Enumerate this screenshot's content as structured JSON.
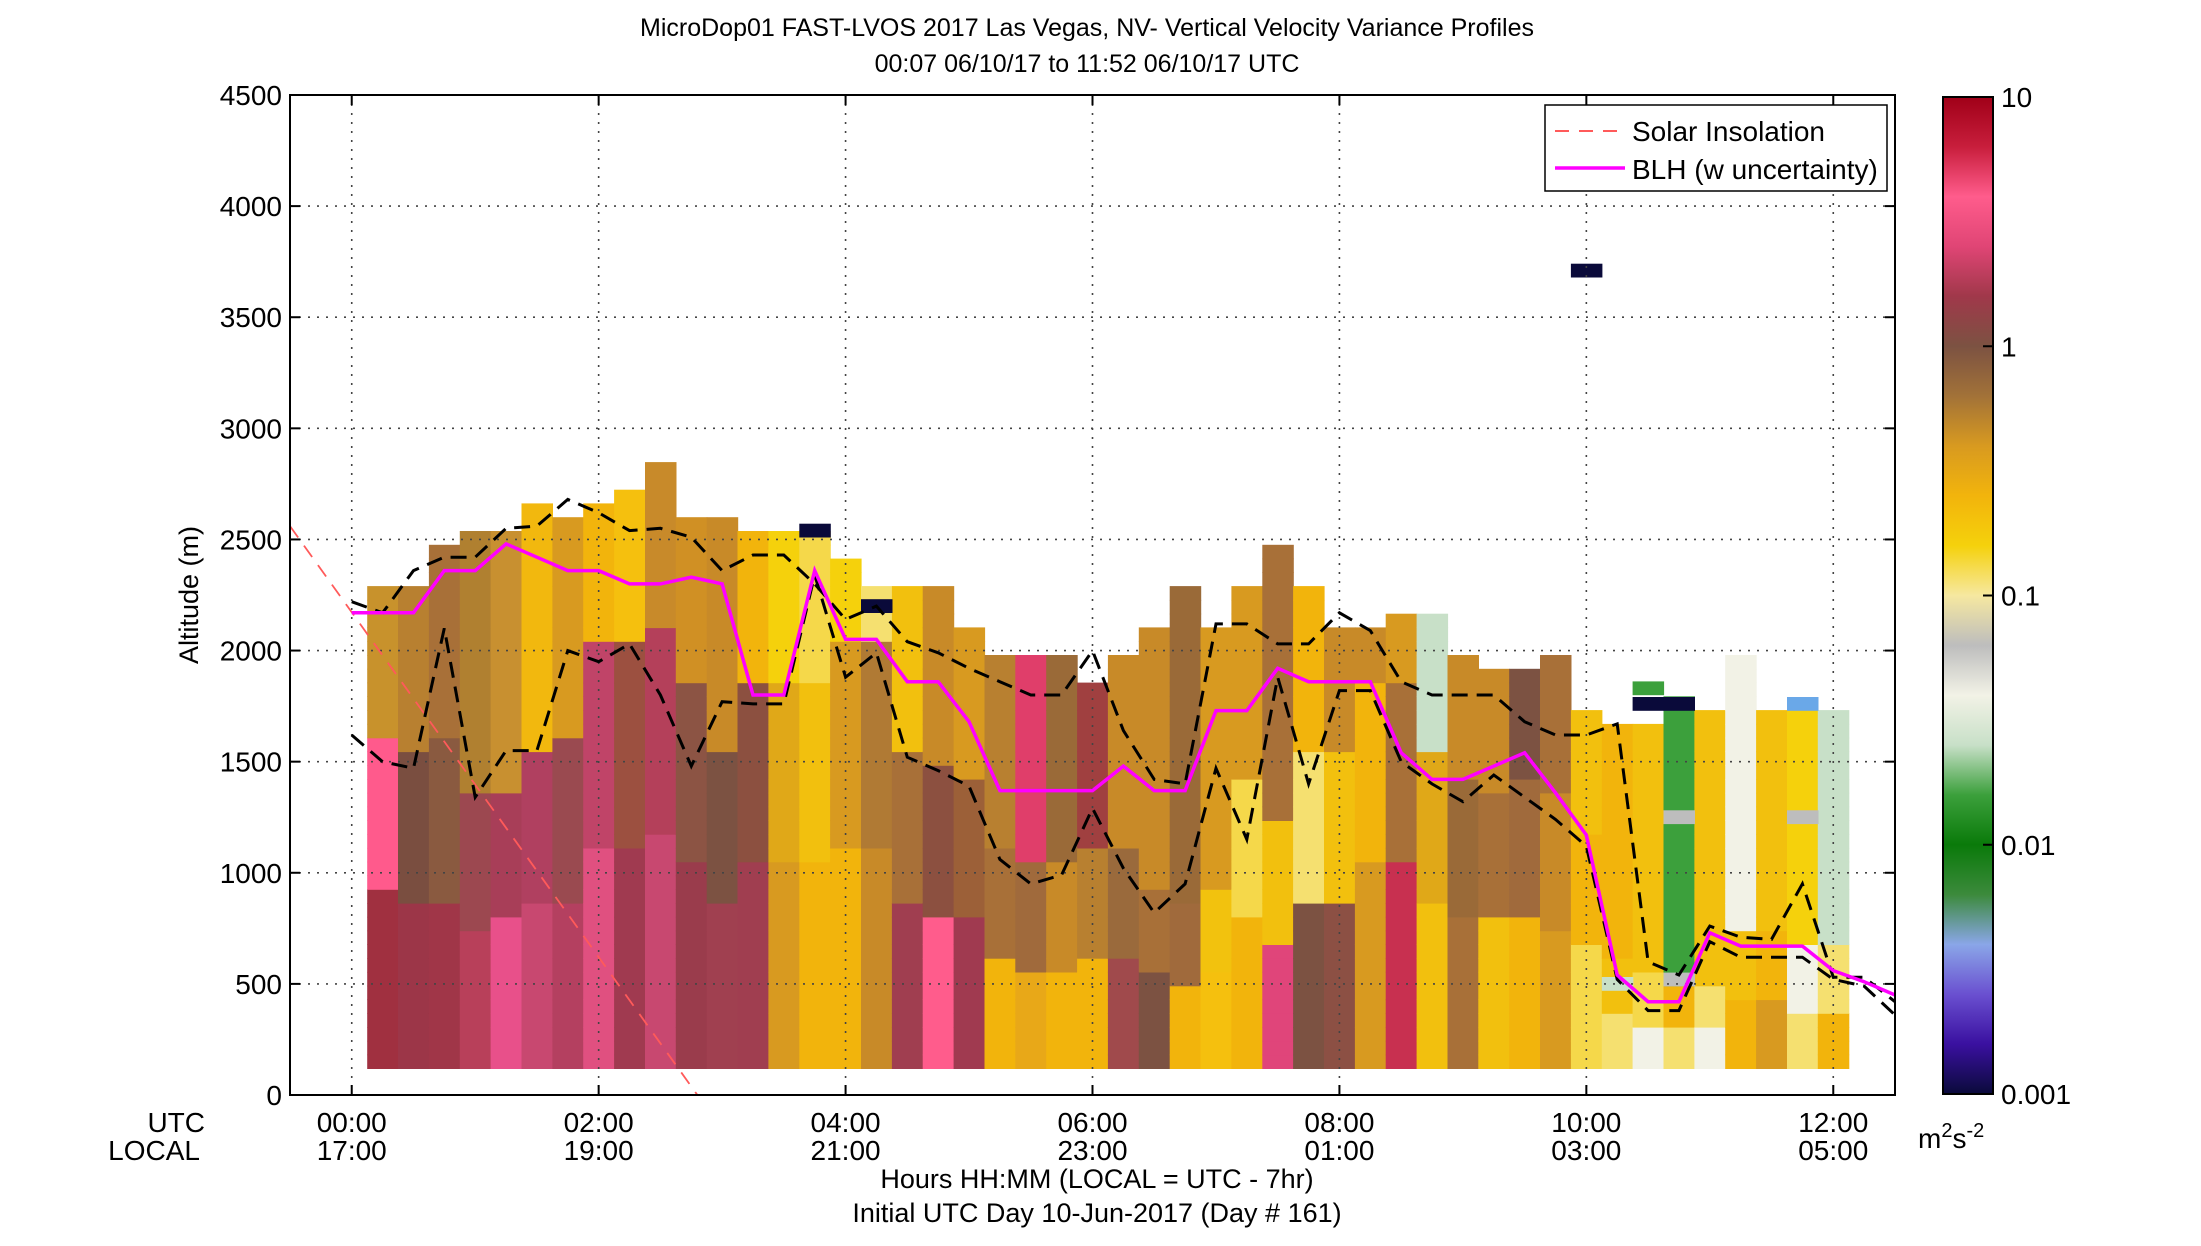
{
  "chart_data": {
    "type": "heatmap",
    "title": "MicroDop01 FAST-LVOS 2017 Las Vegas, NV- Vertical Velocity Variance Profiles",
    "subtitle": "00:07 06/10/17 to 11:52 06/10/17  UTC",
    "ylabel": "Altitude (m)",
    "xlabel": "Hours HH:MM  (LOCAL = UTC - 7hr)",
    "xlabel2": "Initial UTC Day 10-Jun-2017 (Day # 161)",
    "utc_row_label": "UTC",
    "local_row_label": "LOCAL",
    "xlim_hours_utc": [
      -0.5,
      12.5
    ],
    "ylim": [
      0,
      4500
    ],
    "y_ticks": [
      0,
      500,
      1000,
      1500,
      2000,
      2500,
      3000,
      3500,
      4000,
      4500
    ],
    "x_ticks": [
      {
        "hour": 0,
        "utc": "00:00",
        "local": "17:00"
      },
      {
        "hour": 2,
        "utc": "02:00",
        "local": "19:00"
      },
      {
        "hour": 4,
        "utc": "04:00",
        "local": "21:00"
      },
      {
        "hour": 6,
        "utc": "06:00",
        "local": "23:00"
      },
      {
        "hour": 8,
        "utc": "08:00",
        "local": "01:00"
      },
      {
        "hour": 10,
        "utc": "10:00",
        "local": "03:00"
      },
      {
        "hour": 12,
        "utc": "12:00",
        "local": "05:00"
      }
    ],
    "grid": true,
    "legend_position": "top-right",
    "legend": [
      {
        "label": "Solar Insolation",
        "color": "#ff5a5a",
        "style": "dashed"
      },
      {
        "label": "BLH (w uncertainty)",
        "color": "#ff00ff",
        "style": "solid"
      }
    ],
    "colorbar": {
      "scale": "log",
      "range": [
        0.001,
        10
      ],
      "tick_labels": [
        "0.001",
        "0.01",
        "0.1",
        "1",
        "10"
      ],
      "tick_values": [
        0.001,
        0.01,
        0.1,
        1,
        10
      ],
      "units": "m²s⁻²",
      "units_base": "m",
      "units_exp1": "2",
      "units_mid": "s",
      "units_exp2": "-2",
      "colormap": [
        "#0a0a3a",
        "#3a10a0",
        "#6a50d0",
        "#8aa6e8",
        "#3c8a3c",
        "#0a7a0a",
        "#3ca03c",
        "#c8e0c8",
        "#f2f2e6",
        "#bdbdbd",
        "#f6e8a0",
        "#f5d10c",
        "#f2b40c",
        "#d89a20",
        "#a27238",
        "#7c5242",
        "#a0384a",
        "#e04575",
        "#ff5c8c",
        "#c81e3c",
        "#a00018"
      ]
    },
    "blh_series": {
      "name": "BLH (w uncertainty)",
      "hours": [
        0.0,
        0.25,
        0.5,
        0.75,
        1.0,
        1.25,
        1.5,
        1.75,
        2.0,
        2.25,
        2.5,
        2.75,
        3.0,
        3.25,
        3.5,
        3.75,
        4.0,
        4.25,
        4.5,
        4.75,
        5.0,
        5.25,
        5.5,
        5.75,
        6.0,
        6.25,
        6.5,
        6.75,
        7.0,
        7.25,
        7.5,
        7.75,
        8.0,
        8.25,
        8.5,
        8.75,
        9.0,
        9.25,
        9.5,
        9.75,
        10.0,
        10.25,
        10.5,
        10.75,
        11.0,
        11.25,
        11.5,
        11.75,
        12.0,
        12.25,
        12.5
      ],
      "values": [
        2170,
        2170,
        2170,
        2360,
        2360,
        2480,
        2420,
        2360,
        2360,
        2300,
        2300,
        2330,
        2300,
        1800,
        1800,
        2360,
        2050,
        2050,
        1860,
        1860,
        1680,
        1370,
        1370,
        1370,
        1370,
        1480,
        1370,
        1370,
        1730,
        1730,
        1920,
        1860,
        1860,
        1860,
        1540,
        1420,
        1420,
        1480,
        1540,
        1360,
        1170,
        540,
        420,
        420,
        730,
        670,
        670,
        670,
        560,
        510,
        450
      ]
    },
    "blh_upper": {
      "hours": [
        0.0,
        0.25,
        0.5,
        0.75,
        1.0,
        1.25,
        1.5,
        1.75,
        2.0,
        2.25,
        2.5,
        2.75,
        3.0,
        3.25,
        3.5,
        3.75,
        4.0,
        4.25,
        4.5,
        4.75,
        5.0,
        5.25,
        5.5,
        5.75,
        6.0,
        6.25,
        6.5,
        6.75,
        7.0,
        7.25,
        7.5,
        7.75,
        8.0,
        8.25,
        8.5,
        8.75,
        9.0,
        9.25,
        9.5,
        9.75,
        10.0,
        10.25,
        10.5,
        10.75,
        11.0,
        11.25,
        11.5,
        11.75,
        12.0,
        12.25,
        12.5
      ],
      "values": [
        2220,
        2170,
        2360,
        2420,
        2420,
        2550,
        2560,
        2680,
        2620,
        2540,
        2550,
        2510,
        2360,
        2430,
        2430,
        2300,
        2140,
        2200,
        2040,
        1990,
        1920,
        1860,
        1800,
        1800,
        2000,
        1640,
        1420,
        1400,
        2120,
        2120,
        2030,
        2030,
        2170,
        2090,
        1860,
        1800,
        1800,
        1800,
        1680,
        1620,
        1620,
        1670,
        600,
        540,
        760,
        710,
        700,
        950,
        530,
        530,
        420
      ]
    },
    "blh_lower": {
      "hours": [
        0.0,
        0.25,
        0.5,
        0.75,
        1.0,
        1.25,
        1.5,
        1.75,
        2.0,
        2.25,
        2.5,
        2.75,
        3.0,
        3.25,
        3.5,
        3.75,
        4.0,
        4.25,
        4.5,
        4.75,
        5.0,
        5.25,
        5.5,
        5.75,
        6.0,
        6.25,
        6.5,
        6.75,
        7.0,
        7.25,
        7.5,
        7.75,
        8.0,
        8.25,
        8.5,
        8.75,
        9.0,
        9.25,
        9.5,
        9.75,
        10.0,
        10.25,
        10.5,
        10.75,
        11.0,
        11.25,
        11.5,
        11.75,
        12.0,
        12.25,
        12.5
      ],
      "values": [
        1620,
        1500,
        1470,
        2100,
        1340,
        1550,
        1550,
        2000,
        1950,
        2030,
        1800,
        1480,
        1770,
        1760,
        1760,
        2340,
        1880,
        1990,
        1520,
        1460,
        1390,
        1060,
        950,
        990,
        1290,
        1020,
        820,
        950,
        1470,
        1150,
        1880,
        1400,
        1820,
        1820,
        1500,
        1400,
        1320,
        1440,
        1340,
        1240,
        1120,
        520,
        380,
        380,
        690,
        620,
        620,
        620,
        520,
        490,
        360
      ]
    },
    "solar_insolation_line": {
      "name": "Solar Insolation",
      "hours": [
        -0.5,
        2.8
      ],
      "values": [
        2560,
        0
      ]
    },
    "columns": [
      {
        "h": 0.25,
        "top": 2290,
        "r": 1600,
        "lo": "#a03040",
        "mid": "#ff5a8c",
        "hi": "#c8922c"
      },
      {
        "h": 0.5,
        "top": 2230,
        "r": 1500,
        "lo": "#9c3648",
        "mid": "#7a4e40",
        "hi": "#b88030"
      },
      {
        "h": 0.75,
        "top": 2420,
        "r": 1550,
        "lo": "#a03648",
        "mid": "#8a5a40",
        "hi": "#a87038"
      },
      {
        "h": 1.0,
        "top": 2480,
        "r": 1300,
        "lo": "#b8405a",
        "mid": "#9c4850",
        "hi": "#b08030"
      },
      {
        "h": 1.25,
        "top": 2480,
        "r": 1350,
        "lo": "#e8508a",
        "mid": "#a83e58",
        "hi": "#c89030"
      },
      {
        "h": 1.5,
        "top": 2660,
        "r": 1500,
        "lo": "#c84870",
        "mid": "#b04060",
        "hi": "#f2b80e"
      },
      {
        "h": 1.75,
        "top": 2600,
        "r": 1550,
        "lo": "#b44060",
        "mid": "#9a4a50",
        "hi": "#d89a20"
      },
      {
        "h": 2.0,
        "top": 2660,
        "r": 2000,
        "lo": "#e05080",
        "mid": "#c04468",
        "hi": "#f2b40c"
      },
      {
        "h": 2.25,
        "top": 2720,
        "r": 2000,
        "lo": "#a03a50",
        "mid": "#9c5040",
        "hi": "#f5c00e"
      },
      {
        "h": 2.5,
        "top": 2790,
        "r": 2050,
        "lo": "#c84870",
        "mid": "#b4405a",
        "hi": "#c88a2a"
      },
      {
        "h": 2.75,
        "top": 2600,
        "r": 1800,
        "lo": "#9a3c4c",
        "mid": "#8c5444",
        "hi": "#d09024"
      },
      {
        "h": 3.0,
        "top": 2540,
        "r": 1500,
        "lo": "#a04050",
        "mid": "#7c5242",
        "hi": "#c88a28"
      },
      {
        "h": 3.25,
        "top": 2480,
        "r": 1800,
        "lo": "#a03e50",
        "mid": "#8c5040",
        "hi": "#f2b40c"
      },
      {
        "h": 3.5,
        "top": 2480,
        "r": 1800,
        "lo": "#d89a20",
        "mid": "#e0a818",
        "hi": "#f5d10c"
      },
      {
        "h": 3.75,
        "top": 2480,
        "r": 1800,
        "lo": "#f2b40c",
        "mid": "#f2c00e",
        "hi": "#f5d84a"
      },
      {
        "h": 4.0,
        "top": 2360,
        "r": 2000,
        "lo": "#f2b40c",
        "mid": "#d89a20",
        "hi": "#f5d10c"
      },
      {
        "h": 4.25,
        "top": 2230,
        "r": 2000,
        "lo": "#c88a28",
        "mid": "#b07a34",
        "hi": "#f5e070"
      },
      {
        "h": 4.5,
        "top": 2230,
        "r": 1500,
        "lo": "#a03e50",
        "mid": "#a87038",
        "hi": "#f2c00e"
      },
      {
        "h": 4.75,
        "top": 2230,
        "r": 1450,
        "lo": "#ff5c8c",
        "mid": "#8c5040",
        "hi": "#c88a28"
      },
      {
        "h": 5.0,
        "top": 2100,
        "r": 1400,
        "lo": "#a03a50",
        "mid": "#9c6038",
        "hi": "#d89a20"
      },
      {
        "h": 5.25,
        "top": 1980,
        "r": 1100,
        "lo": "#f2b40c",
        "mid": "#a87038",
        "hi": "#b88030"
      },
      {
        "h": 5.5,
        "top": 1980,
        "r": 1000,
        "lo": "#e8a818",
        "mid": "#a06a3c",
        "hi": "#e03e6a"
      },
      {
        "h": 5.75,
        "top": 1920,
        "r": 1000,
        "lo": "#f2b40c",
        "mid": "#c88a28",
        "hi": "#9a6a38"
      },
      {
        "h": 6.0,
        "top": 1800,
        "r": 1100,
        "lo": "#f2b40c",
        "mid": "#b88030",
        "hi": "#a04040"
      },
      {
        "h": 6.25,
        "top": 1980,
        "r": 1100,
        "lo": "#a04a4c",
        "mid": "#9a6a3c",
        "hi": "#c88a28"
      },
      {
        "h": 6.5,
        "top": 2100,
        "r": 900,
        "lo": "#7c5242",
        "mid": "#a87038",
        "hi": "#c88a28"
      },
      {
        "h": 6.75,
        "top": 2230,
        "r": 850,
        "lo": "#f2b40c",
        "mid": "#a06a3c",
        "hi": "#9a6a38"
      },
      {
        "h": 7.0,
        "top": 2100,
        "r": 900,
        "lo": "#f5c00e",
        "mid": "#f2c20e",
        "hi": "#d89a20"
      },
      {
        "h": 7.25,
        "top": 2230,
        "r": 1400,
        "lo": "#f2b40c",
        "mid": "#f5d84a",
        "hi": "#d89a20"
      },
      {
        "h": 7.5,
        "top": 2420,
        "r": 1200,
        "lo": "#e0457a",
        "mid": "#f2c00e",
        "hi": "#a87038"
      },
      {
        "h": 7.75,
        "top": 2230,
        "r": 1500,
        "lo": "#7c5242",
        "mid": "#f5e070",
        "hi": "#f2b40c"
      },
      {
        "h": 8.0,
        "top": 2100,
        "r": 1500,
        "lo": "#8c5044",
        "mid": "#f2c00e",
        "hi": "#c88a28"
      },
      {
        "h": 8.25,
        "top": 2100,
        "r": 1850,
        "lo": "#d89a20",
        "mid": "#f2b40c",
        "hi": "#c88a28"
      },
      {
        "h": 8.5,
        "top": 2160,
        "r": 1850,
        "lo": "#c83050",
        "mid": "#a87038",
        "hi": "#d89a20"
      },
      {
        "h": 8.75,
        "top": 2160,
        "r": 1500,
        "lo": "#f2c00e",
        "mid": "#e0a818",
        "hi": "#c8e0c8"
      },
      {
        "h": 9.0,
        "top": 1920,
        "r": 1400,
        "lo": "#a87038",
        "mid": "#9a6a38",
        "hi": "#c88a28"
      },
      {
        "h": 9.25,
        "top": 1860,
        "r": 1350,
        "lo": "#f2c00e",
        "mid": "#a87038",
        "hi": "#c88a28"
      },
      {
        "h": 9.5,
        "top": 1860,
        "r": 1400,
        "lo": "#f2b40c",
        "mid": "#a06a3c",
        "hi": "#7c5242"
      },
      {
        "h": 9.75,
        "top": 1920,
        "r": 1300,
        "lo": "#d89a20",
        "mid": "#c88a28",
        "hi": "#a87038"
      },
      {
        "h": 10.0,
        "top": 1730,
        "r": 1150,
        "lo": "#f5d84a",
        "mid": "#f2b40c",
        "hi": "#f2c00e"
      },
      {
        "h": 10.25,
        "top": 1670,
        "r": 600,
        "lo": "#f5e070",
        "mid": "#f2c00e",
        "hi": "#f2b40c"
      },
      {
        "h": 10.5,
        "top": 1610,
        "r": 500,
        "lo": "#f2f2e6",
        "mid": "#f5d84a",
        "hi": "#f2c00e"
      },
      {
        "h": 10.75,
        "top": 1790,
        "r": 450,
        "lo": "#f5e070",
        "mid": "#f2b40c",
        "hi": "#3ca03c"
      },
      {
        "h": 11.0,
        "top": 1730,
        "r": 450,
        "lo": "#f2f2e6",
        "mid": "#f5e070",
        "hi": "#f2c00e"
      },
      {
        "h": 11.25,
        "top": 1920,
        "r": 700,
        "lo": "#f2b40c",
        "mid": "#f2c00e",
        "hi": "#f2f2e6"
      },
      {
        "h": 11.5,
        "top": 1730,
        "r": 700,
        "lo": "#d89a20",
        "mid": "#f2b40c",
        "hi": "#f2c00e"
      },
      {
        "h": 11.75,
        "top": 1730,
        "r": 650,
        "lo": "#f5e070",
        "mid": "#f2f2e6",
        "hi": "#f5d10c"
      },
      {
        "h": 12.0,
        "top": 1730,
        "r": 650,
        "lo": "#f2b40c",
        "mid": "#f5e070",
        "hi": "#c8e0c8"
      }
    ],
    "isolated_cells": [
      {
        "hour": 3.75,
        "alt": 2540,
        "color": "#0a0a3a"
      },
      {
        "hour": 4.25,
        "alt": 2200,
        "color": "#0a0a3a"
      },
      {
        "hour": 10.0,
        "alt": 3710,
        "color": "#0a0a3a"
      },
      {
        "hour": 10.5,
        "alt": 1760,
        "color": "#0a0a3a"
      },
      {
        "hour": 10.75,
        "alt": 1760,
        "color": "#0a0a3a"
      },
      {
        "hour": 11.75,
        "alt": 1760,
        "color": "#6aa8e8"
      },
      {
        "hour": 10.75,
        "alt": 1250,
        "color": "#bdbdbd"
      },
      {
        "hour": 11.75,
        "alt": 1250,
        "color": "#bdbdbd"
      },
      {
        "hour": 10.75,
        "alt": 520,
        "color": "#bdbdbd"
      },
      {
        "hour": 10.25,
        "alt": 500,
        "color": "#c8e0c8"
      },
      {
        "hour": 10.5,
        "alt": 1830,
        "color": "#3ca03c"
      }
    ]
  }
}
